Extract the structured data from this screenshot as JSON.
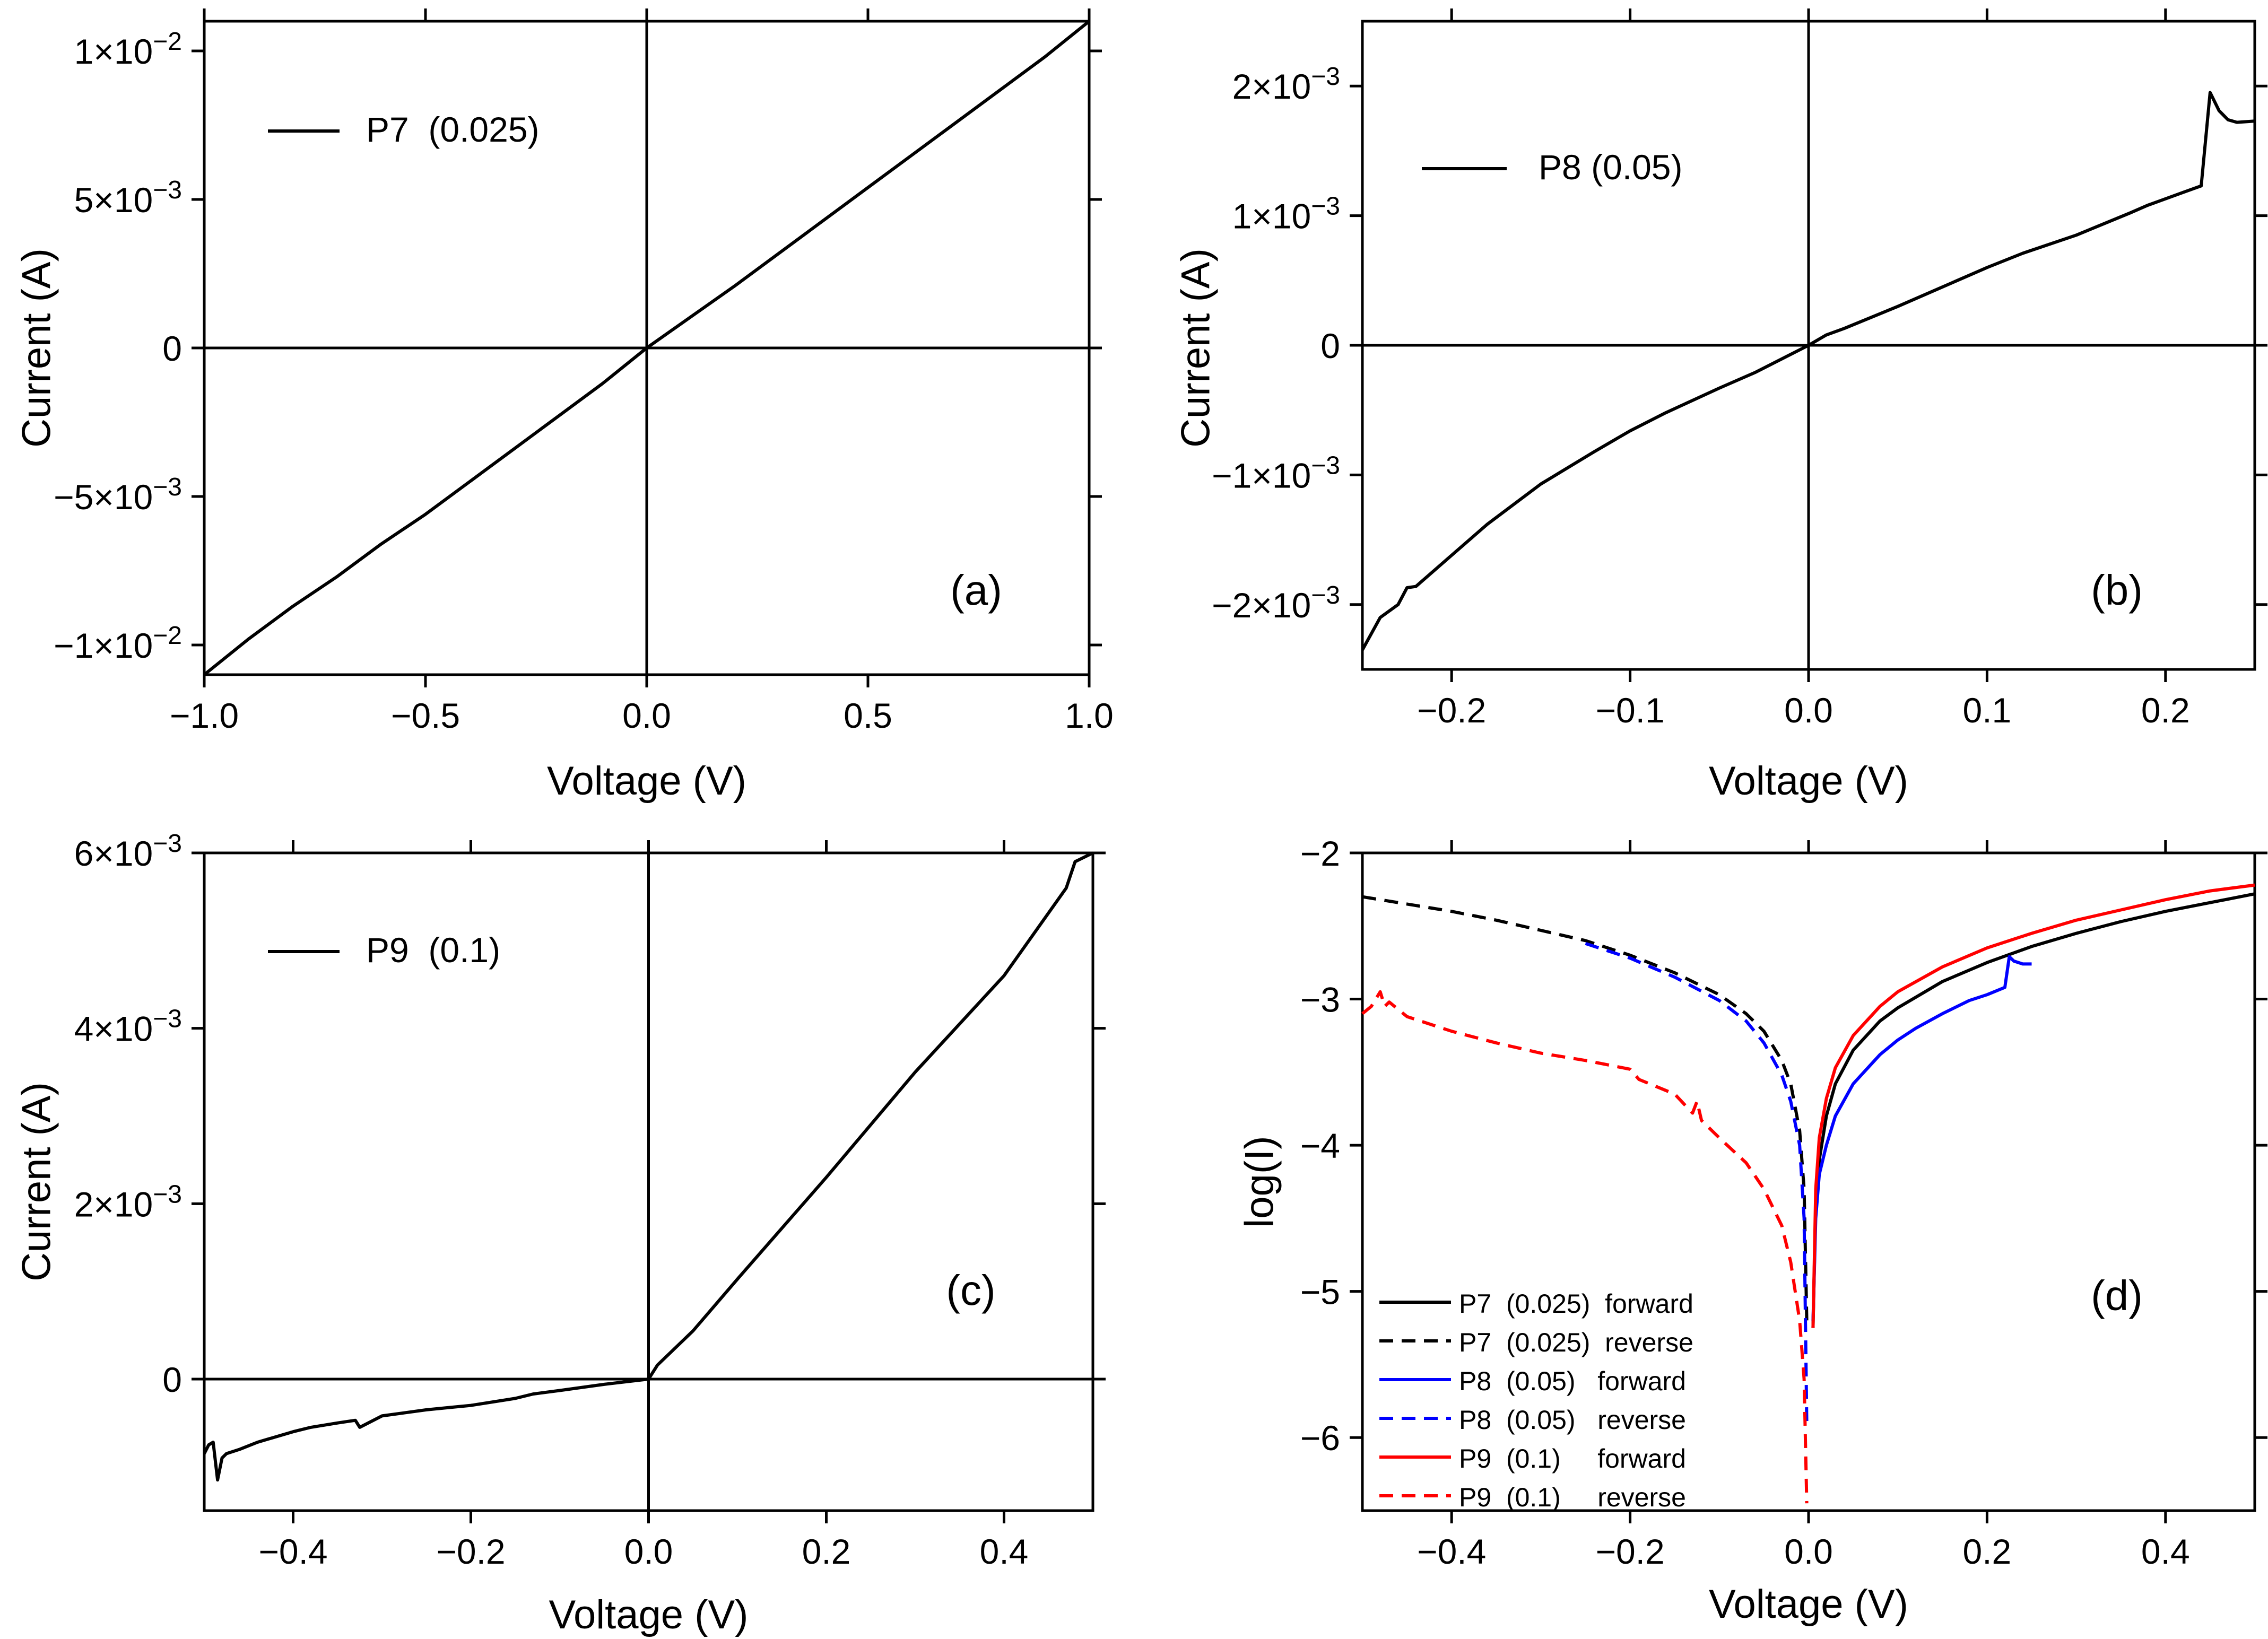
{
  "chart_data": [
    {
      "type": "line",
      "panel_label": "(a)",
      "xlabel": "Voltage (V)",
      "ylabel": "Current (A)",
      "xlim": [
        -1.0,
        1.0
      ],
      "ylim": [
        -0.011,
        0.011
      ],
      "xticks": [
        -1.0,
        -0.5,
        0.0,
        0.5,
        1.0
      ],
      "xtick_labels": [
        "−1.0",
        "−0.5",
        "0.0",
        "0.5",
        "1.0"
      ],
      "yticks": [
        -0.01,
        -0.005,
        0,
        0.005,
        0.01
      ],
      "ytick_labels": [
        {
          "mant": "−1×10",
          "exp": "−2"
        },
        {
          "mant": "−5×10",
          "exp": "−3"
        },
        {
          "mant": "0",
          "exp": ""
        },
        {
          "mant": "5×10",
          "exp": "−3"
        },
        {
          "mant": "1×10",
          "exp": "−2"
        }
      ],
      "axes_lines_at_zero": true,
      "legend_position": "upper-left",
      "series": [
        {
          "name": "P7  (0.025)",
          "color": "#000000",
          "dash": "solid",
          "x": [
            -1.0,
            -0.9,
            -0.8,
            -0.7,
            -0.6,
            -0.5,
            -0.4,
            -0.3,
            -0.2,
            -0.1,
            0.0,
            0.1,
            0.2,
            0.3,
            0.4,
            0.5,
            0.6,
            0.7,
            0.8,
            0.9,
            1.0
          ],
          "y": [
            -0.011,
            -0.0098,
            -0.0087,
            -0.0077,
            -0.0066,
            -0.0056,
            -0.0045,
            -0.0034,
            -0.0023,
            -0.0012,
            0.0,
            0.00105,
            0.0021,
            0.0032,
            0.0043,
            0.0054,
            0.0065,
            0.0076,
            0.0087,
            0.0098,
            0.011
          ]
        }
      ]
    },
    {
      "type": "line",
      "panel_label": "(b)",
      "xlabel": "Voltage (V)",
      "ylabel": "Current (A)",
      "xlim": [
        -0.25,
        0.25
      ],
      "ylim": [
        -0.0025,
        0.0025
      ],
      "xticks": [
        -0.2,
        -0.1,
        0.0,
        0.1,
        0.2
      ],
      "xtick_labels": [
        "−0.2",
        "−0.1",
        "0.0",
        "0.1",
        "0.2"
      ],
      "yticks": [
        -0.002,
        -0.001,
        0,
        0.001,
        0.002
      ],
      "ytick_labels": [
        {
          "mant": "−2×10",
          "exp": "−3"
        },
        {
          "mant": "−1×10",
          "exp": "−3"
        },
        {
          "mant": "0",
          "exp": ""
        },
        {
          "mant": "1×10",
          "exp": "−3"
        },
        {
          "mant": "2×10",
          "exp": "−3"
        }
      ],
      "axes_lines_at_zero": true,
      "legend_position": "upper-left",
      "series": [
        {
          "name": "P8 (0.05)",
          "color": "#000000",
          "dash": "solid",
          "x": [
            -0.25,
            -0.24,
            -0.23,
            -0.225,
            -0.22,
            -0.2,
            -0.18,
            -0.15,
            -0.12,
            -0.1,
            -0.08,
            -0.05,
            -0.03,
            -0.01,
            0.0,
            0.01,
            0.02,
            0.05,
            0.08,
            0.1,
            0.12,
            0.15,
            0.18,
            0.19,
            0.2,
            0.21,
            0.22,
            0.225,
            0.23,
            0.235,
            0.24,
            0.25
          ],
          "y": [
            -0.00235,
            -0.0021,
            -0.002,
            -0.00187,
            -0.00186,
            -0.00162,
            -0.00138,
            -0.00107,
            -0.00082,
            -0.00066,
            -0.00052,
            -0.00033,
            -0.00021,
            -7e-05,
            0.0,
            8e-05,
            0.00013,
            0.0003,
            0.00048,
            0.0006,
            0.00071,
            0.00085,
            0.00102,
            0.00108,
            0.00113,
            0.00118,
            0.00123,
            0.00195,
            0.00181,
            0.00174,
            0.00172,
            0.00173
          ]
        }
      ]
    },
    {
      "type": "line",
      "panel_label": "(c)",
      "xlabel": "Voltage (V)",
      "ylabel": "Current (A)",
      "xlim": [
        -0.5,
        0.5
      ],
      "ylim": [
        -0.0015,
        0.006
      ],
      "xticks": [
        -0.4,
        -0.2,
        0.0,
        0.2,
        0.4
      ],
      "xtick_labels": [
        "−0.4",
        "−0.2",
        "0.0",
        "0.2",
        "0.4"
      ],
      "yticks": [
        0,
        0.002,
        0.004,
        0.006
      ],
      "ytick_labels": [
        {
          "mant": "0",
          "exp": ""
        },
        {
          "mant": "2×10",
          "exp": "−3"
        },
        {
          "mant": "4×10",
          "exp": "−3"
        },
        {
          "mant": "6×10",
          "exp": "−3"
        }
      ],
      "axes_lines_at_zero": true,
      "legend_position": "upper-left",
      "series": [
        {
          "name": "P9  (0.1)",
          "color": "#000000",
          "dash": "solid",
          "x": [
            -0.5,
            -0.495,
            -0.49,
            -0.485,
            -0.48,
            -0.475,
            -0.46,
            -0.44,
            -0.42,
            -0.4,
            -0.38,
            -0.35,
            -0.33,
            -0.325,
            -0.3,
            -0.25,
            -0.22,
            -0.2,
            -0.15,
            -0.13,
            -0.1,
            -0.05,
            0.0,
            0.01,
            0.05,
            0.1,
            0.2,
            0.3,
            0.4,
            0.47,
            0.475,
            0.48,
            0.5
          ],
          "y": [
            -0.00085,
            -0.00075,
            -0.00072,
            -0.00115,
            -0.0009,
            -0.00085,
            -0.0008,
            -0.00072,
            -0.00066,
            -0.0006,
            -0.00055,
            -0.0005,
            -0.00047,
            -0.00055,
            -0.00042,
            -0.00035,
            -0.00032,
            -0.0003,
            -0.00022,
            -0.00017,
            -0.00013,
            -6e-05,
            0.0,
            0.00016,
            0.00055,
            0.00114,
            0.0023,
            0.0035,
            0.0046,
            0.0056,
            0.00575,
            0.0059,
            0.006
          ]
        }
      ]
    },
    {
      "type": "line",
      "panel_label": "(d)",
      "xlabel": "Voltage (V)",
      "ylabel": "log(I)",
      "xlim": [
        -0.5,
        0.5
      ],
      "ylim": [
        -6.5,
        -2.0
      ],
      "xticks": [
        -0.4,
        -0.2,
        0.0,
        0.2,
        0.4
      ],
      "xtick_labels": [
        "−0.4",
        "−0.2",
        "0.0",
        "0.2",
        "0.4"
      ],
      "yticks": [
        -6,
        -5,
        -4,
        -3,
        -2
      ],
      "ytick_labels": [
        {
          "mant": "−6",
          "exp": ""
        },
        {
          "mant": "−5",
          "exp": ""
        },
        {
          "mant": "−4",
          "exp": ""
        },
        {
          "mant": "−3",
          "exp": ""
        },
        {
          "mant": "−2",
          "exp": ""
        }
      ],
      "axes_lines_at_zero": false,
      "legend_position": "lower-left",
      "series": [
        {
          "name": "P7  (0.025)  forward",
          "color": "#000000",
          "dash": "solid",
          "x": [
            0.005,
            0.008,
            0.012,
            0.02,
            0.03,
            0.05,
            0.08,
            0.1,
            0.15,
            0.2,
            0.25,
            0.3,
            0.35,
            0.4,
            0.45,
            0.5
          ],
          "y": [
            -5.25,
            -4.4,
            -4.1,
            -3.8,
            -3.58,
            -3.35,
            -3.15,
            -3.06,
            -2.88,
            -2.75,
            -2.64,
            -2.55,
            -2.47,
            -2.4,
            -2.34,
            -2.28
          ]
        },
        {
          "name": "P7  (0.025)  reverse",
          "color": "#000000",
          "dash": "dashed",
          "x": [
            -0.5,
            -0.45,
            -0.4,
            -0.35,
            -0.3,
            -0.25,
            -0.2,
            -0.15,
            -0.1,
            -0.07,
            -0.05,
            -0.03,
            -0.02,
            -0.01,
            -0.005,
            -0.002
          ],
          "y": [
            -2.3,
            -2.35,
            -2.4,
            -2.46,
            -2.53,
            -2.6,
            -2.7,
            -2.82,
            -2.97,
            -3.1,
            -3.22,
            -3.42,
            -3.58,
            -3.9,
            -4.3,
            -5.2
          ]
        },
        {
          "name": "P8  (0.05)   forward",
          "color": "#0000ff",
          "dash": "solid",
          "x": [
            0.005,
            0.008,
            0.012,
            0.02,
            0.03,
            0.05,
            0.08,
            0.1,
            0.12,
            0.15,
            0.18,
            0.2,
            0.22,
            0.225,
            0.23,
            0.24,
            0.25
          ],
          "y": [
            -5.2,
            -4.5,
            -4.2,
            -4.0,
            -3.8,
            -3.58,
            -3.38,
            -3.28,
            -3.2,
            -3.1,
            -3.01,
            -2.97,
            -2.92,
            -2.71,
            -2.74,
            -2.76,
            -2.76
          ]
        },
        {
          "name": "P8  (0.05)   reverse",
          "color": "#0000ff",
          "dash": "dashed",
          "x": [
            -0.25,
            -0.2,
            -0.15,
            -0.1,
            -0.07,
            -0.05,
            -0.03,
            -0.02,
            -0.01,
            -0.005,
            -0.002
          ],
          "y": [
            -2.62,
            -2.72,
            -2.85,
            -3.01,
            -3.15,
            -3.3,
            -3.52,
            -3.7,
            -4.0,
            -4.5,
            -5.9
          ]
        },
        {
          "name": "P9  (0.1)     forward",
          "color": "#ff0000",
          "dash": "solid",
          "x": [
            0.005,
            0.008,
            0.012,
            0.02,
            0.03,
            0.05,
            0.08,
            0.1,
            0.15,
            0.2,
            0.25,
            0.3,
            0.35,
            0.4,
            0.45,
            0.5
          ],
          "y": [
            -5.25,
            -4.3,
            -3.95,
            -3.68,
            -3.47,
            -3.25,
            -3.05,
            -2.95,
            -2.78,
            -2.65,
            -2.55,
            -2.46,
            -2.39,
            -2.32,
            -2.26,
            -2.22
          ]
        },
        {
          "name": "P9  (0.1)     reverse",
          "color": "#ff0000",
          "dash": "dashed",
          "x": [
            -0.5,
            -0.49,
            -0.48,
            -0.475,
            -0.47,
            -0.45,
            -0.4,
            -0.35,
            -0.3,
            -0.25,
            -0.2,
            -0.19,
            -0.15,
            -0.13,
            -0.125,
            -0.12,
            -0.1,
            -0.07,
            -0.05,
            -0.03,
            -0.02,
            -0.01,
            -0.005,
            -0.002
          ],
          "y": [
            -3.1,
            -3.05,
            -2.95,
            -3.05,
            -3.02,
            -3.12,
            -3.22,
            -3.3,
            -3.37,
            -3.42,
            -3.48,
            -3.55,
            -3.65,
            -3.78,
            -3.7,
            -3.83,
            -3.95,
            -4.12,
            -4.3,
            -4.55,
            -4.8,
            -5.2,
            -5.6,
            -6.45
          ]
        }
      ]
    }
  ]
}
